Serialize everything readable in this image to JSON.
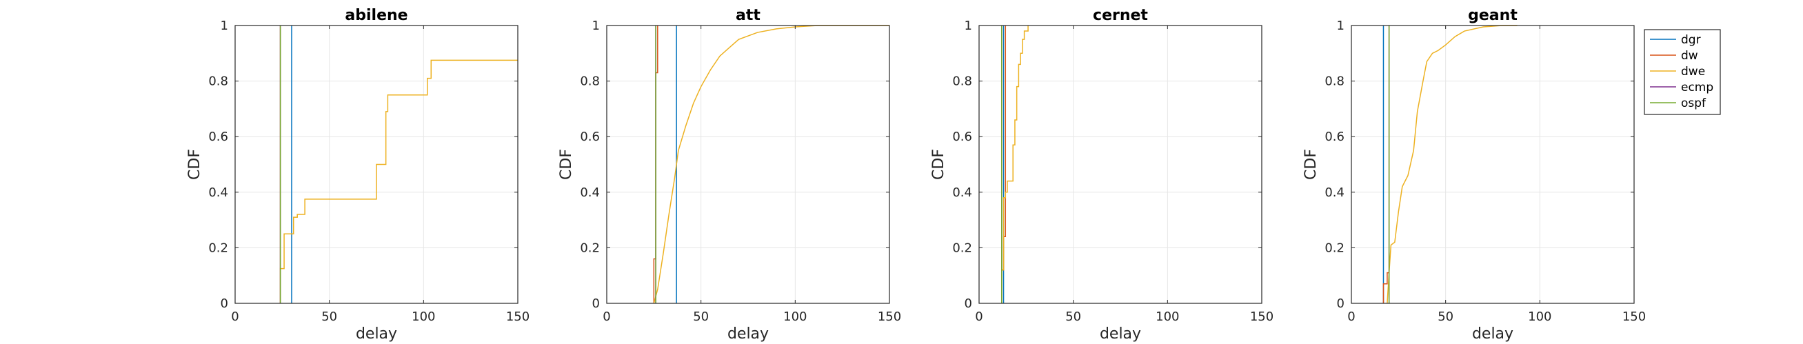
{
  "colors": {
    "dgr": "#0072bd",
    "dw": "#d95319",
    "dwe": "#edb120",
    "ecmp": "#7e2f8e",
    "ospf": "#77ac30",
    "axis": "#262626",
    "grid": "#e6e6e6"
  },
  "legend": {
    "placement": "outside-right-top",
    "entries": [
      {
        "key": "dgr",
        "label": "dgr"
      },
      {
        "key": "dw",
        "label": "dw"
      },
      {
        "key": "dwe",
        "label": "dwe"
      },
      {
        "key": "ecmp",
        "label": "ecmp"
      },
      {
        "key": "ospf",
        "label": "ospf"
      }
    ]
  },
  "chart_data": [
    {
      "type": "line",
      "title": "abilene",
      "xlabel": "delay",
      "ylabel": "CDF",
      "xlim": [
        0,
        150
      ],
      "ylim": [
        0,
        1
      ],
      "xticks": [
        0,
        50,
        100,
        150
      ],
      "yticks": [
        0,
        0.2,
        0.4,
        0.6,
        0.8,
        1
      ],
      "xtick_labels": [
        "0",
        "50",
        "100",
        "150"
      ],
      "ytick_labels": [
        "0",
        "0.2",
        "0.4",
        "0.6",
        "0.8",
        "1"
      ],
      "grid": true,
      "series": [
        {
          "name": "dgr",
          "step": true,
          "points": [
            [
              30,
              0
            ],
            [
              30,
              1
            ]
          ]
        },
        {
          "name": "dw",
          "step": true,
          "points": [
            [
              24,
              0
            ],
            [
              24,
              1
            ]
          ]
        },
        {
          "name": "dwe",
          "step": true,
          "points": [
            [
              24,
              0
            ],
            [
              24,
              0.125
            ],
            [
              26,
              0.125
            ],
            [
              26,
              0.25
            ],
            [
              31,
              0.25
            ],
            [
              31,
              0.31
            ],
            [
              33,
              0.31
            ],
            [
              33,
              0.32
            ],
            [
              37,
              0.32
            ],
            [
              37,
              0.375
            ],
            [
              75,
              0.375
            ],
            [
              75,
              0.5
            ],
            [
              80,
              0.5
            ],
            [
              80,
              0.69
            ],
            [
              81,
              0.69
            ],
            [
              81,
              0.75
            ],
            [
              102,
              0.75
            ],
            [
              102,
              0.81
            ],
            [
              104,
              0.81
            ],
            [
              104,
              0.875
            ],
            [
              150,
              0.875
            ]
          ]
        },
        {
          "name": "ecmp",
          "step": true,
          "points": [
            [
              24,
              0
            ],
            [
              24,
              1
            ]
          ]
        },
        {
          "name": "ospf",
          "step": true,
          "points": [
            [
              24,
              0
            ],
            [
              24,
              1
            ]
          ]
        }
      ]
    },
    {
      "type": "line",
      "title": "att",
      "xlabel": "delay",
      "ylabel": "CDF",
      "xlim": [
        0,
        150
      ],
      "ylim": [
        0,
        1
      ],
      "xticks": [
        0,
        50,
        100,
        150
      ],
      "yticks": [
        0,
        0.2,
        0.4,
        0.6,
        0.8,
        1
      ],
      "xtick_labels": [
        "0",
        "50",
        "100",
        "150"
      ],
      "ytick_labels": [
        "0",
        "0.2",
        "0.4",
        "0.6",
        "0.8",
        "1"
      ],
      "grid": true,
      "series": [
        {
          "name": "dgr",
          "step": true,
          "points": [
            [
              37,
              0
            ],
            [
              37,
              1
            ]
          ]
        },
        {
          "name": "dw",
          "step": true,
          "points": [
            [
              25,
              0
            ],
            [
              25,
              0.16
            ],
            [
              26,
              0.16
            ],
            [
              26,
              0.83
            ],
            [
              27,
              0.83
            ],
            [
              27,
              1
            ]
          ]
        },
        {
          "name": "dwe",
          "step": false,
          "points": [
            [
              25,
              0
            ],
            [
              27,
              0.05
            ],
            [
              30,
              0.18
            ],
            [
              33,
              0.32
            ],
            [
              36,
              0.45
            ],
            [
              38,
              0.55
            ],
            [
              42,
              0.64
            ],
            [
              46,
              0.72
            ],
            [
              50,
              0.78
            ],
            [
              55,
              0.84
            ],
            [
              60,
              0.89
            ],
            [
              65,
              0.92
            ],
            [
              70,
              0.95
            ],
            [
              80,
              0.975
            ],
            [
              90,
              0.988
            ],
            [
              100,
              0.995
            ],
            [
              112,
              1
            ],
            [
              150,
              1
            ]
          ]
        },
        {
          "name": "ecmp",
          "step": true,
          "points": [
            [
              26,
              0
            ],
            [
              26,
              1
            ]
          ]
        },
        {
          "name": "ospf",
          "step": true,
          "points": [
            [
              26,
              0
            ],
            [
              26,
              1
            ]
          ]
        }
      ]
    },
    {
      "type": "line",
      "title": "cernet",
      "xlabel": "delay",
      "ylabel": "CDF",
      "xlim": [
        0,
        150
      ],
      "ylim": [
        0,
        1
      ],
      "xticks": [
        0,
        50,
        100,
        150
      ],
      "yticks": [
        0,
        0.2,
        0.4,
        0.6,
        0.8,
        1
      ],
      "xtick_labels": [
        "0",
        "50",
        "100",
        "150"
      ],
      "ytick_labels": [
        "0",
        "0.2",
        "0.4",
        "0.6",
        "0.8",
        "1"
      ],
      "grid": true,
      "series": [
        {
          "name": "dgr",
          "step": true,
          "points": [
            [
              13,
              0
            ],
            [
              13,
              1
            ]
          ]
        },
        {
          "name": "dw",
          "step": true,
          "points": [
            [
              12,
              0
            ],
            [
              12,
              0.12
            ],
            [
              13,
              0.12
            ],
            [
              13,
              0.24
            ],
            [
              14,
              0.24
            ],
            [
              14,
              1
            ]
          ]
        },
        {
          "name": "dwe",
          "step": true,
          "points": [
            [
              12,
              0
            ],
            [
              12,
              0.12
            ],
            [
              13,
              0.12
            ],
            [
              13,
              0.38
            ],
            [
              14,
              0.38
            ],
            [
              14,
              0.4
            ],
            [
              15,
              0.4
            ],
            [
              15,
              0.44
            ],
            [
              18,
              0.44
            ],
            [
              18,
              0.57
            ],
            [
              19,
              0.57
            ],
            [
              19,
              0.66
            ],
            [
              20,
              0.66
            ],
            [
              20,
              0.78
            ],
            [
              21,
              0.78
            ],
            [
              21,
              0.86
            ],
            [
              22,
              0.86
            ],
            [
              22,
              0.9
            ],
            [
              23,
              0.9
            ],
            [
              23,
              0.95
            ],
            [
              24,
              0.95
            ],
            [
              24,
              0.98
            ],
            [
              26,
              0.98
            ],
            [
              26,
              1
            ]
          ]
        },
        {
          "name": "ecmp",
          "step": true,
          "points": [
            [
              12,
              0
            ],
            [
              12,
              1
            ]
          ]
        },
        {
          "name": "ospf",
          "step": true,
          "points": [
            [
              12,
              0
            ],
            [
              12,
              1
            ]
          ]
        }
      ]
    },
    {
      "type": "line",
      "title": "geant",
      "xlabel": "delay",
      "ylabel": "CDF",
      "xlim": [
        0,
        150
      ],
      "ylim": [
        0,
        1
      ],
      "xticks": [
        0,
        50,
        100,
        150
      ],
      "yticks": [
        0,
        0.2,
        0.4,
        0.6,
        0.8,
        1
      ],
      "xtick_labels": [
        "0",
        "50",
        "100",
        "150"
      ],
      "ytick_labels": [
        "0",
        "0.2",
        "0.4",
        "0.6",
        "0.8",
        "1"
      ],
      "grid": true,
      "series": [
        {
          "name": "dgr",
          "step": true,
          "points": [
            [
              17,
              0
            ],
            [
              17,
              1
            ]
          ]
        },
        {
          "name": "dw",
          "step": true,
          "points": [
            [
              17,
              0
            ],
            [
              17,
              0.07
            ],
            [
              19,
              0.07
            ],
            [
              19,
              0.11
            ],
            [
              20,
              0.11
            ],
            [
              20,
              1
            ]
          ]
        },
        {
          "name": "dwe",
          "step": false,
          "points": [
            [
              19,
              0
            ],
            [
              20,
              0.11
            ],
            [
              21,
              0.21
            ],
            [
              23,
              0.22
            ],
            [
              25,
              0.33
            ],
            [
              27,
              0.42
            ],
            [
              30,
              0.46
            ],
            [
              33,
              0.55
            ],
            [
              35,
              0.69
            ],
            [
              38,
              0.8
            ],
            [
              40,
              0.87
            ],
            [
              43,
              0.9
            ],
            [
              46,
              0.91
            ],
            [
              50,
              0.93
            ],
            [
              55,
              0.96
            ],
            [
              60,
              0.98
            ],
            [
              70,
              0.995
            ],
            [
              80,
              1
            ],
            [
              88,
              1
            ]
          ]
        },
        {
          "name": "ecmp",
          "step": true,
          "points": [
            [
              20,
              0
            ],
            [
              20,
              1
            ]
          ]
        },
        {
          "name": "ospf",
          "step": true,
          "points": [
            [
              20,
              0
            ],
            [
              20,
              1
            ]
          ]
        }
      ]
    }
  ]
}
